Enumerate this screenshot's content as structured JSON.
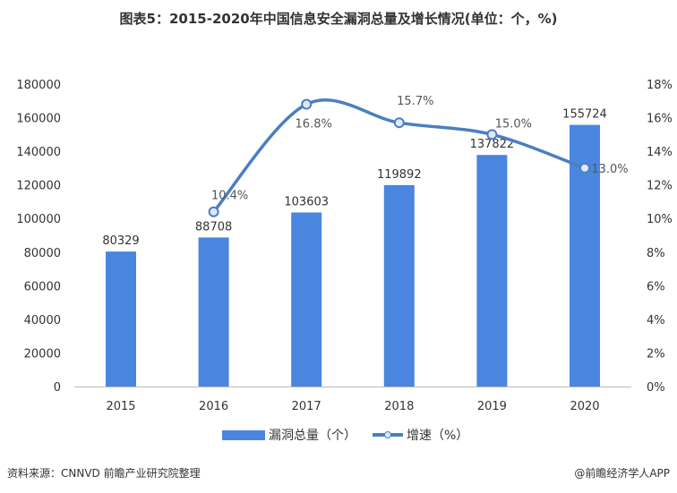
{
  "chart_data": {
    "type": "bar+line",
    "title": "图表5：2015-2020年中国信息安全漏洞总量及增长情况(单位：个，%)",
    "categories": [
      "2015",
      "2016",
      "2017",
      "2018",
      "2019",
      "2020"
    ],
    "series": [
      {
        "name": "漏洞总量（个）",
        "type": "bar",
        "axis": "left",
        "values": [
          80329,
          88708,
          103603,
          119892,
          137822,
          155724
        ],
        "labels": [
          "80329",
          "88708",
          "103603",
          "119892",
          "137822",
          "155724"
        ]
      },
      {
        "name": "增速（%）",
        "type": "line",
        "axis": "right",
        "values": [
          null,
          10.4,
          16.8,
          15.7,
          15.0,
          13.0
        ],
        "labels": [
          "",
          "10.4%",
          "16.8%",
          "15.7%",
          "15.0%",
          "13.0%"
        ]
      }
    ],
    "left_axis": {
      "ylim": [
        0,
        180000
      ],
      "ticks": [
        "0",
        "20000",
        "40000",
        "60000",
        "80000",
        "100000",
        "120000",
        "140000",
        "160000",
        "180000"
      ]
    },
    "right_axis": {
      "ylim": [
        0,
        18
      ],
      "ticks": [
        "0%",
        "2%",
        "4%",
        "6%",
        "8%",
        "10%",
        "12%",
        "14%",
        "16%",
        "18%"
      ]
    },
    "grid": false,
    "legend": "bottom",
    "colors": {
      "bar": "#4a86e0",
      "line": "#4a7fc1",
      "text": "#333333"
    }
  },
  "footer": {
    "source": "资料来源：CNNVD 前瞻产业研究院整理",
    "credit": "@前瞻经济学人APP"
  }
}
